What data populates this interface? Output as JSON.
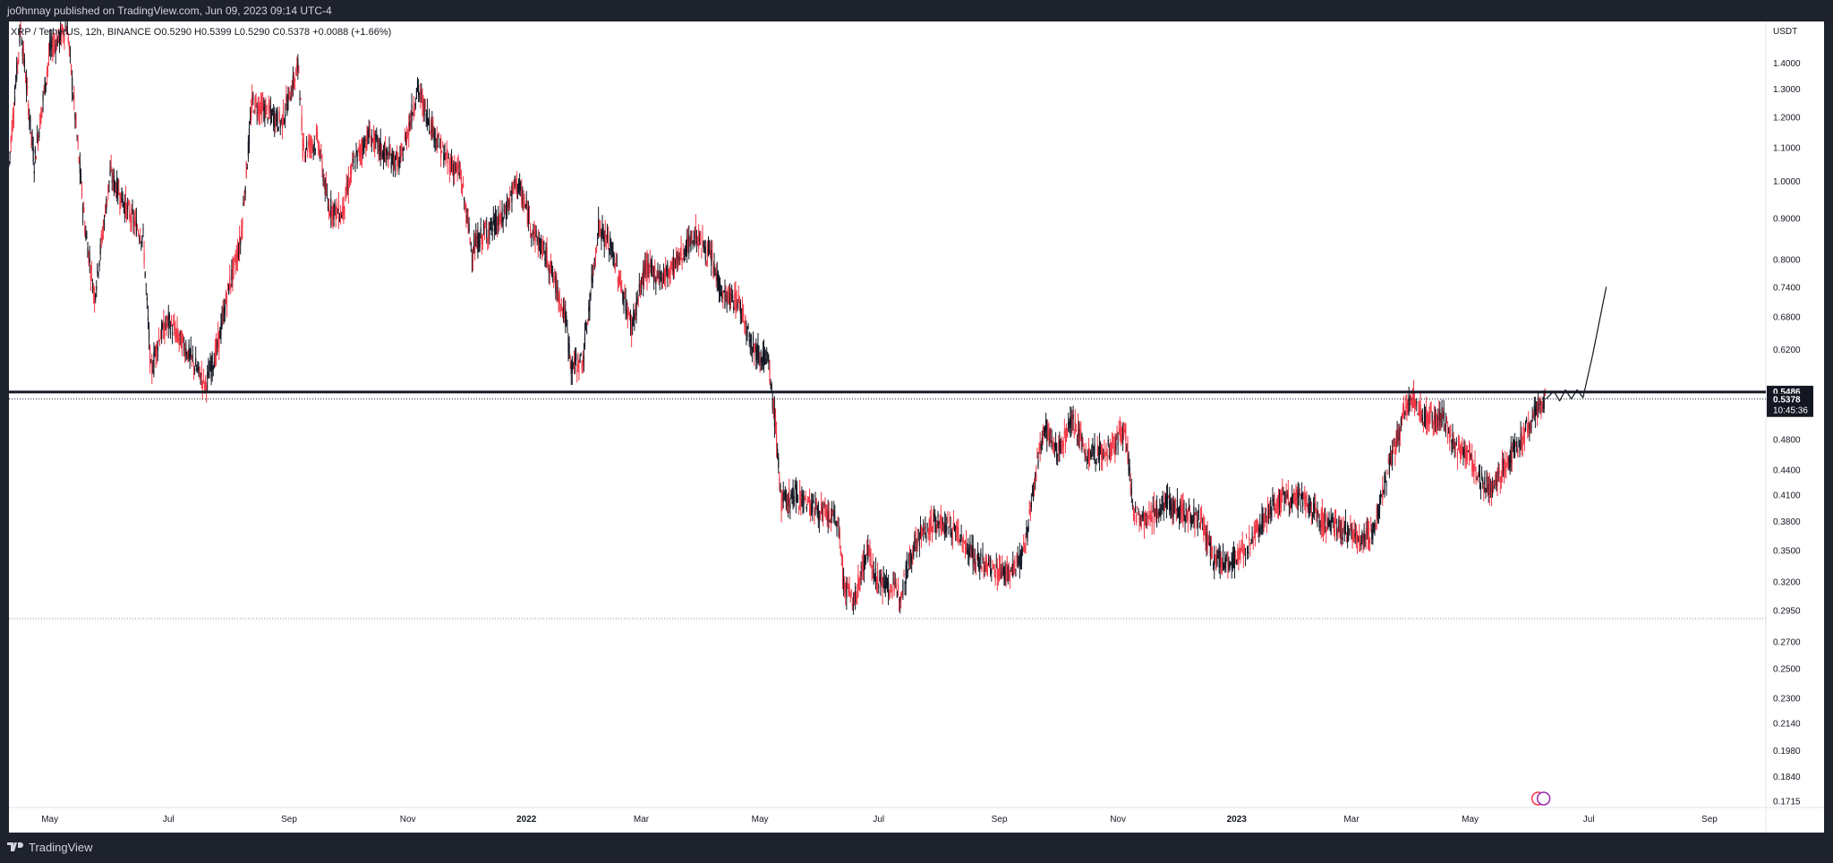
{
  "header": {
    "publish_line": "jo0hnnay published on TradingView.com, Jun 09, 2023 09:14 UTC-4"
  },
  "legend": {
    "symbol": "XRP / TetherUS, 12h, BINANCE",
    "open": "O0.5290",
    "high": "H0.5399",
    "low": "L0.5290",
    "close": "C0.5378",
    "change": "+0.0088 (+1.66%)"
  },
  "footer": {
    "brand": "TradingView",
    "logo_icon": "tradingview-logo-icon"
  },
  "chart_data": {
    "type": "candlestick",
    "symbol": "XRP / TetherUS",
    "interval": "12h",
    "exchange": "BINANCE",
    "y_scale": "log",
    "ylim": [
      0.17,
      1.55
    ],
    "y_unit_label": "USDT",
    "y_ticks": [
      "1.4000",
      "1.3000",
      "1.2000",
      "1.1000",
      "1.0000",
      "0.9000",
      "0.8000",
      "0.7400",
      "0.6800",
      "0.6200",
      "0.5486",
      "0.4800",
      "0.4400",
      "0.4100",
      "0.3800",
      "0.3500",
      "0.3200",
      "0.2950",
      "0.2700",
      "0.2500",
      "0.2300",
      "0.2140",
      "0.1980",
      "0.1840",
      "0.1715"
    ],
    "x_ticks": [
      "May",
      "Jul",
      "Sep",
      "Nov",
      "2022",
      "Mar",
      "May",
      "Jul",
      "Sep",
      "Nov",
      "2023",
      "Mar",
      "May",
      "Jul",
      "Sep"
    ],
    "x_ticks_bold": [
      "2022",
      "2023"
    ],
    "xlim": [
      "2021-04-10",
      "2023-09-30"
    ],
    "x_tick_dates": [
      "2021-05-01",
      "2021-07-01",
      "2021-09-01",
      "2021-11-01",
      "2022-01-01",
      "2022-03-01",
      "2022-05-01",
      "2022-07-01",
      "2022-09-01",
      "2022-11-01",
      "2023-01-01",
      "2023-03-01",
      "2023-05-01",
      "2023-07-01",
      "2023-09-01"
    ],
    "horizontal_lines": [
      {
        "price": 0.5486,
        "style": "solid",
        "label": "0.5486",
        "color": "#131722"
      },
      {
        "price": 0.5378,
        "style": "dotted",
        "label": "0.5378",
        "sublabel": "10:45:36",
        "color": "#131722"
      },
      {
        "price": 0.288,
        "style": "dotted",
        "color": "#9598a1"
      }
    ],
    "price_path": [
      [
        "2021-04-10",
        1.05
      ],
      [
        "2021-04-16",
        1.55
      ],
      [
        "2021-04-23",
        1.05
      ],
      [
        "2021-05-01",
        1.45
      ],
      [
        "2021-05-10",
        1.55
      ],
      [
        "2021-05-19",
        0.88
      ],
      [
        "2021-05-24",
        0.72
      ],
      [
        "2021-06-01",
        1.02
      ],
      [
        "2021-06-10",
        0.92
      ],
      [
        "2021-06-18",
        0.85
      ],
      [
        "2021-06-22",
        0.58
      ],
      [
        "2021-06-26",
        0.64
      ],
      [
        "2021-07-01",
        0.67
      ],
      [
        "2021-07-10",
        0.62
      ],
      [
        "2021-07-20",
        0.56
      ],
      [
        "2021-07-26",
        0.62
      ],
      [
        "2021-08-01",
        0.74
      ],
      [
        "2021-08-07",
        0.84
      ],
      [
        "2021-08-13",
        1.25
      ],
      [
        "2021-08-20",
        1.22
      ],
      [
        "2021-08-28",
        1.18
      ],
      [
        "2021-09-06",
        1.39
      ],
      [
        "2021-09-08",
        1.1
      ],
      [
        "2021-09-16",
        1.12
      ],
      [
        "2021-09-21",
        0.93
      ],
      [
        "2021-09-28",
        0.91
      ],
      [
        "2021-10-04",
        1.05
      ],
      [
        "2021-10-12",
        1.14
      ],
      [
        "2021-10-20",
        1.08
      ],
      [
        "2021-10-28",
        1.05
      ],
      [
        "2021-11-06",
        1.3
      ],
      [
        "2021-11-10",
        1.22
      ],
      [
        "2021-11-20",
        1.07
      ],
      [
        "2021-11-28",
        1.02
      ],
      [
        "2021-12-04",
        0.82
      ],
      [
        "2021-12-10",
        0.86
      ],
      [
        "2021-12-20",
        0.9
      ],
      [
        "2021-12-27",
        1.0
      ],
      [
        "2022-01-05",
        0.86
      ],
      [
        "2022-01-12",
        0.8
      ],
      [
        "2022-01-21",
        0.68
      ],
      [
        "2022-01-24",
        0.59
      ],
      [
        "2022-01-30",
        0.6
      ],
      [
        "2022-02-07",
        0.88
      ],
      [
        "2022-02-14",
        0.82
      ],
      [
        "2022-02-24",
        0.66
      ],
      [
        "2022-03-03",
        0.78
      ],
      [
        "2022-03-12",
        0.76
      ],
      [
        "2022-03-20",
        0.8
      ],
      [
        "2022-03-29",
        0.86
      ],
      [
        "2022-04-06",
        0.8
      ],
      [
        "2022-04-12",
        0.72
      ],
      [
        "2022-04-20",
        0.71
      ],
      [
        "2022-04-28",
        0.62
      ],
      [
        "2022-05-05",
        0.6
      ],
      [
        "2022-05-09",
        0.5
      ],
      [
        "2022-05-12",
        0.4
      ],
      [
        "2022-05-20",
        0.41
      ],
      [
        "2022-06-01",
        0.39
      ],
      [
        "2022-06-10",
        0.38
      ],
      [
        "2022-06-13",
        0.32
      ],
      [
        "2022-06-18",
        0.3
      ],
      [
        "2022-06-25",
        0.35
      ],
      [
        "2022-07-01",
        0.32
      ],
      [
        "2022-07-12",
        0.31
      ],
      [
        "2022-07-20",
        0.36
      ],
      [
        "2022-07-30",
        0.38
      ],
      [
        "2022-08-10",
        0.37
      ],
      [
        "2022-08-20",
        0.34
      ],
      [
        "2022-08-30",
        0.33
      ],
      [
        "2022-09-08",
        0.33
      ],
      [
        "2022-09-14",
        0.35
      ],
      [
        "2022-09-22",
        0.47
      ],
      [
        "2022-09-24",
        0.5
      ],
      [
        "2022-10-01",
        0.46
      ],
      [
        "2022-10-08",
        0.51
      ],
      [
        "2022-10-16",
        0.46
      ],
      [
        "2022-10-25",
        0.46
      ],
      [
        "2022-11-05",
        0.49
      ],
      [
        "2022-11-09",
        0.39
      ],
      [
        "2022-11-15",
        0.38
      ],
      [
        "2022-11-25",
        0.4
      ],
      [
        "2022-12-06",
        0.39
      ],
      [
        "2022-12-14",
        0.38
      ],
      [
        "2022-12-20",
        0.34
      ],
      [
        "2022-12-30",
        0.34
      ],
      [
        "2023-01-09",
        0.36
      ],
      [
        "2023-01-14",
        0.38
      ],
      [
        "2023-01-25",
        0.41
      ],
      [
        "2023-02-05",
        0.4
      ],
      [
        "2023-02-15",
        0.38
      ],
      [
        "2023-02-25",
        0.37
      ],
      [
        "2023-03-08",
        0.36
      ],
      [
        "2023-03-12",
        0.37
      ],
      [
        "2023-03-20",
        0.44
      ],
      [
        "2023-03-29",
        0.52
      ],
      [
        "2023-04-01",
        0.54
      ],
      [
        "2023-04-08",
        0.51
      ],
      [
        "2023-04-17",
        0.51
      ],
      [
        "2023-04-23",
        0.47
      ],
      [
        "2023-04-30",
        0.46
      ],
      [
        "2023-05-08",
        0.42
      ],
      [
        "2023-05-12",
        0.42
      ],
      [
        "2023-05-20",
        0.45
      ],
      [
        "2023-05-28",
        0.48
      ],
      [
        "2023-06-03",
        0.52
      ],
      [
        "2023-06-09",
        0.5378
      ]
    ],
    "projection_path": [
      [
        "2023-06-09",
        0.5378
      ],
      [
        "2023-06-13",
        0.55
      ],
      [
        "2023-06-16",
        0.535
      ],
      [
        "2023-06-19",
        0.552
      ],
      [
        "2023-06-22",
        0.538
      ],
      [
        "2023-06-25",
        0.552
      ],
      [
        "2023-06-28",
        0.54
      ],
      [
        "2023-07-03",
        0.61
      ],
      [
        "2023-07-10",
        0.74
      ]
    ],
    "colors": {
      "up": "#131722",
      "down": "#f23645",
      "projection": "#131722",
      "axis_text": "#131722",
      "header_bg": "#1e222d",
      "label_bg": "#131722"
    }
  }
}
